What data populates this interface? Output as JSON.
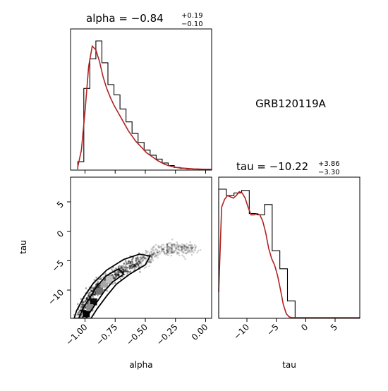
{
  "chart_data": {
    "type": "corner",
    "label": "GRB120119A",
    "parameters": [
      "alpha",
      "tau"
    ],
    "panels": [
      {
        "panel": "alpha-marginal",
        "type": "histogram",
        "title": {
          "prefix": "alpha = ",
          "value": "−0.84",
          "plus": "+0.19",
          "minus": "−0.10"
        },
        "xlim": [
          -1.12,
          0.05
        ],
        "bin_edges": [
          -1.06,
          -1.01,
          -0.96,
          -0.91,
          -0.86,
          -0.81,
          -0.76,
          -0.71,
          -0.66,
          -0.61,
          -0.56,
          -0.51,
          -0.46,
          -0.41,
          -0.36,
          -0.31,
          -0.26,
          -0.21,
          -0.16,
          -0.11,
          -0.06,
          -0.01,
          0.04
        ],
        "counts": [
          0.06,
          0.63,
          0.86,
          1.0,
          0.83,
          0.66,
          0.58,
          0.47,
          0.37,
          0.28,
          0.21,
          0.15,
          0.11,
          0.08,
          0.05,
          0.03,
          0.015,
          0.008,
          0.004,
          0.002,
          0.001,
          0.001
        ],
        "kde_x": [
          -1.06,
          -1.03,
          -1.0,
          -0.97,
          -0.94,
          -0.91,
          -0.88,
          -0.85,
          -0.82,
          -0.79,
          -0.76,
          -0.73,
          -0.7,
          -0.67,
          -0.64,
          -0.61,
          -0.58,
          -0.55,
          -0.52,
          -0.49,
          -0.46,
          -0.43,
          -0.4,
          -0.37,
          -0.34,
          -0.31,
          -0.28,
          -0.25,
          -0.22,
          -0.19,
          -0.16,
          -0.13,
          -0.1,
          -0.07,
          -0.04,
          -0.01,
          0.02,
          0.05
        ],
        "kde_y": [
          0.02,
          0.15,
          0.45,
          0.8,
          0.96,
          0.93,
          0.84,
          0.72,
          0.63,
          0.56,
          0.5,
          0.45,
          0.4,
          0.35,
          0.3,
          0.26,
          0.22,
          0.19,
          0.16,
          0.13,
          0.11,
          0.09,
          0.07,
          0.055,
          0.04,
          0.03,
          0.022,
          0.016,
          0.012,
          0.01,
          0.008,
          0.006,
          0.004,
          0.003,
          0.002,
          0.001,
          0.001,
          0.0
        ]
      },
      {
        "panel": "tau-marginal",
        "type": "histogram",
        "title": {
          "prefix": "tau = ",
          "value": "−10.22",
          "plus": "+3.86",
          "minus": "−3.30"
        },
        "xlim": [
          -14.8,
          9.2
        ],
        "xticks": [
          -10,
          -5,
          0,
          5
        ],
        "xtick_labels": [
          "−10",
          "−5",
          "0",
          "5"
        ],
        "xlabel": "tau",
        "bin_edges": [
          -14.8,
          -13.5,
          -12.2,
          -10.9,
          -9.6,
          -8.3,
          -7.0,
          -5.7,
          -4.4,
          -3.1,
          -1.8,
          -0.5,
          0.8,
          2.1,
          3.4,
          4.7,
          6.0,
          7.3,
          8.6
        ],
        "counts": [
          1.0,
          0.95,
          0.97,
          0.99,
          0.81,
          0.8,
          0.88,
          0.52,
          0.38,
          0.13,
          0.0,
          0.0,
          0.0,
          0.0,
          0.0,
          0.0,
          0.0,
          0.0
        ],
        "kde_x": [
          -14.8,
          -14.3,
          -13.8,
          -13.3,
          -12.8,
          -12.3,
          -11.8,
          -11.3,
          -10.8,
          -10.3,
          -9.8,
          -9.3,
          -8.8,
          -8.3,
          -7.8,
          -7.3,
          -6.8,
          -6.3,
          -5.8,
          -5.3,
          -4.8,
          -4.3,
          -3.8,
          -3.3,
          -2.8,
          -2.3,
          -1.8,
          -1.3,
          -0.8,
          0,
          2,
          4,
          6,
          9.2
        ],
        "kde_y": [
          0.2,
          0.86,
          0.92,
          0.95,
          0.94,
          0.93,
          0.95,
          0.98,
          0.97,
          0.93,
          0.86,
          0.8,
          0.8,
          0.81,
          0.8,
          0.75,
          0.66,
          0.54,
          0.46,
          0.41,
          0.33,
          0.22,
          0.1,
          0.03,
          0.005,
          0.0,
          0.0,
          0.0,
          0.0,
          0.0,
          0.0,
          0.0,
          0.0,
          0.0
        ]
      },
      {
        "panel": "alpha-tau-joint",
        "type": "scatter+contour",
        "xlim": [
          -1.12,
          0.05
        ],
        "ylim": [
          -14.8,
          9.2
        ],
        "xticks": [
          -1.0,
          -0.75,
          -0.5,
          -0.25,
          0.0
        ],
        "xtick_labels": [
          "−1.00",
          "−0.75",
          "−0.50",
          "−0.25",
          "0.00"
        ],
        "yticks": [
          -10,
          -5,
          0,
          5
        ],
        "ytick_labels": [
          "−10",
          "−5",
          "0",
          "5"
        ],
        "xlabel": "alpha",
        "ylabel": "tau",
        "dense_cells": [
          {
            "x": -0.99,
            "y": -14.0,
            "density": 1.0
          },
          {
            "x": -0.93,
            "y": -12.0,
            "density": 0.95
          },
          {
            "x": -0.88,
            "y": -10.2,
            "density": 0.55
          },
          {
            "x": -0.96,
            "y": -13.0,
            "density": 0.45
          },
          {
            "x": -0.84,
            "y": -9.0,
            "density": 0.35
          },
          {
            "x": -0.8,
            "y": -8.2,
            "density": 0.25
          }
        ],
        "contour_inner": [
          [
            -0.99,
            -14.8
          ],
          [
            -0.95,
            -13.5
          ],
          [
            -0.9,
            -12.0
          ],
          [
            -0.84,
            -10.2
          ],
          [
            -0.77,
            -8.6
          ],
          [
            -0.68,
            -7.3
          ],
          [
            -0.72,
            -6.4
          ],
          [
            -0.82,
            -7.5
          ],
          [
            -0.9,
            -9.3
          ],
          [
            -0.96,
            -11.3
          ],
          [
            -1.02,
            -13.2
          ],
          [
            -1.05,
            -14.8
          ]
        ],
        "contour_outer": [
          [
            -0.95,
            -14.8
          ],
          [
            -0.9,
            -13.2
          ],
          [
            -0.82,
            -11.0
          ],
          [
            -0.74,
            -9.0
          ],
          [
            -0.63,
            -7.3
          ],
          [
            -0.5,
            -5.7
          ],
          [
            -0.46,
            -4.2
          ],
          [
            -0.55,
            -3.9
          ],
          [
            -0.68,
            -4.8
          ],
          [
            -0.82,
            -6.6
          ],
          [
            -0.93,
            -8.8
          ],
          [
            -1.01,
            -11.2
          ],
          [
            -1.07,
            -13.5
          ],
          [
            -1.09,
            -14.8
          ]
        ]
      }
    ]
  }
}
